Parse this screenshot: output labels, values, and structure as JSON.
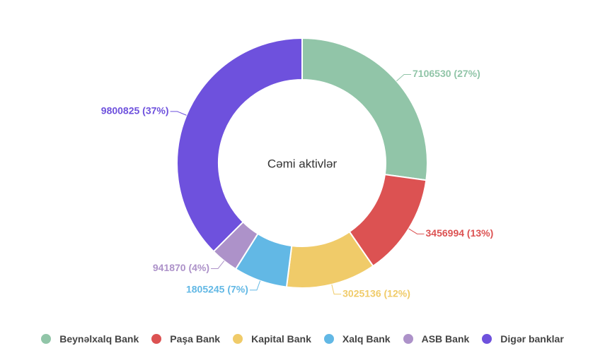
{
  "chart_data": {
    "type": "pie",
    "variant": "donut",
    "center_label": "Cəmi aktivlər",
    "categories": [
      "Beynəlxalq Bank",
      "Paşa Bank",
      "Kapital Bank",
      "Xalq Bank",
      "ASB Bank",
      "Digər banklar"
    ],
    "values": [
      7106530,
      3456994,
      3025136,
      1805245,
      941870,
      9800825
    ],
    "percent_labels": [
      "27%",
      "13%",
      "12%",
      "7%",
      "4%",
      "37%"
    ],
    "data_labels": [
      "7106530 (27%)",
      "3456994 (13%)",
      "3025136 (12%)",
      "1805245 (7%)",
      "941870 (4%)",
      "9800825 (37%)"
    ],
    "colors": [
      "#91c5a8",
      "#dc5252",
      "#f0cb69",
      "#62b8e5",
      "#ad92c9",
      "#6e51dd"
    ],
    "legend_position": "bottom"
  }
}
